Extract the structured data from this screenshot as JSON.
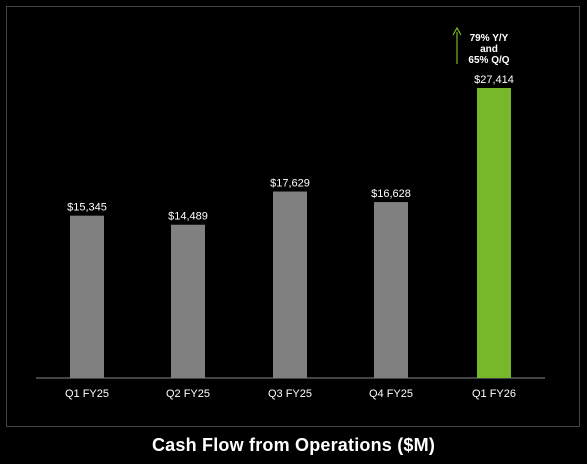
{
  "chart_data": {
    "type": "bar",
    "title": "Cash Flow from Operations ($M)",
    "categories": [
      "Q1 FY25",
      "Q2 FY25",
      "Q3 FY25",
      "Q4 FY25",
      "Q1 FY26"
    ],
    "values": [
      15345,
      14489,
      17629,
      16628,
      27414
    ],
    "value_labels": [
      "$15,345",
      "$14,489",
      "$17,629",
      "$16,628",
      "$27,414"
    ],
    "ylim": [
      0,
      27414
    ],
    "xlabel": "",
    "ylabel": "",
    "grid": false,
    "colors": {
      "default": "#808080",
      "highlight": "#76b82a",
      "axis": "#888888",
      "background": "#000000"
    },
    "highlight_index": 4,
    "annotation": {
      "lines": [
        "79% Y/Y",
        "and",
        "65% Q/Q"
      ],
      "arrow": "up",
      "arrow_color": "#76b82a",
      "target_index": 4
    }
  }
}
